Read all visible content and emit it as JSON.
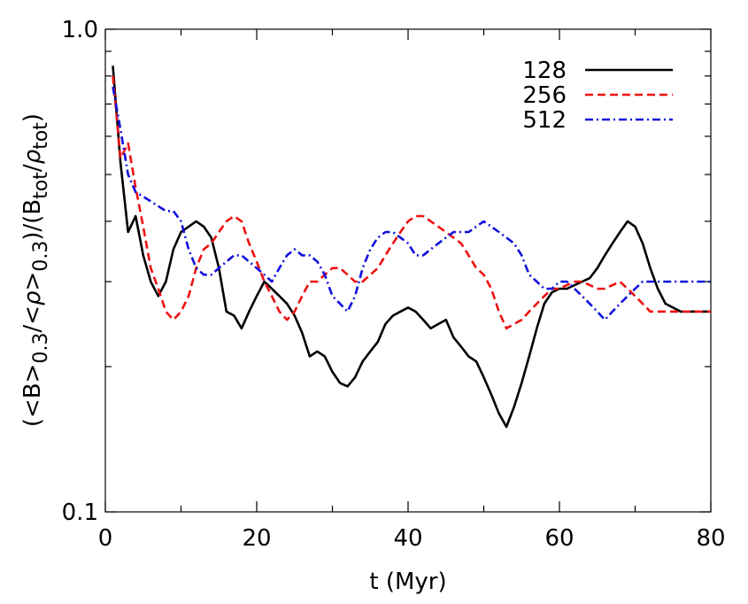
{
  "chart_data": {
    "type": "line",
    "title": "",
    "xlabel": "t (Myr)",
    "ylabel_parts": {
      "open": "(<B>",
      "sub1": "0.3",
      "mid": "/<",
      "rho1": "ρ",
      "mid2": ">",
      "sub2": "0.3",
      "mid3": ")/(B",
      "sub3": "tot",
      "slash": "/",
      "rho2": "ρ",
      "sub4": "tot",
      "close": ")"
    },
    "xlim": [
      0,
      80
    ],
    "ylim": [
      0.1,
      1.0
    ],
    "yscale": "log",
    "xticks": [
      0,
      20,
      40,
      60,
      80
    ],
    "xtick_labels": [
      "0",
      "20",
      "40",
      "60",
      "80"
    ],
    "yticks_labeled": [
      0.1,
      1.0
    ],
    "ytick_labels": [
      "0.1",
      "1.0"
    ],
    "yticks_minor": [
      0.2,
      0.3,
      0.4,
      0.5,
      0.6,
      0.7,
      0.8,
      0.9
    ],
    "xticks_minor": [
      10,
      30,
      50,
      70
    ],
    "legend_position": "top-right",
    "series": [
      {
        "name": "128",
        "color": "#000000",
        "dash": "solid",
        "x": [
          1,
          2,
          3,
          4,
          5,
          6,
          7,
          8,
          9,
          10,
          11,
          12,
          13,
          14,
          15,
          16,
          17,
          18,
          19,
          20,
          21,
          22,
          23,
          24,
          25,
          26,
          27,
          28,
          29,
          30,
          31,
          32,
          33,
          34,
          35,
          36,
          37,
          38,
          39,
          40,
          41,
          42,
          43,
          44,
          45,
          46,
          47,
          48,
          49,
          50,
          51,
          52,
          53,
          54,
          55,
          56,
          57,
          58,
          59,
          60,
          61,
          62,
          63,
          64,
          65,
          66,
          67,
          68,
          69,
          70,
          71,
          72,
          73,
          74,
          75,
          76,
          77,
          78,
          79,
          80
        ],
        "y": [
          0.84,
          0.53,
          0.38,
          0.41,
          0.34,
          0.3,
          0.28,
          0.3,
          0.35,
          0.38,
          0.39,
          0.4,
          0.39,
          0.37,
          0.32,
          0.26,
          0.255,
          0.24,
          0.26,
          0.28,
          0.3,
          0.29,
          0.28,
          0.27,
          0.255,
          0.235,
          0.21,
          0.215,
          0.21,
          0.195,
          0.185,
          0.182,
          0.19,
          0.205,
          0.215,
          0.225,
          0.245,
          0.255,
          0.26,
          0.265,
          0.26,
          0.25,
          0.24,
          0.245,
          0.25,
          0.23,
          0.22,
          0.21,
          0.205,
          0.19,
          0.175,
          0.16,
          0.15,
          0.165,
          0.185,
          0.21,
          0.24,
          0.27,
          0.285,
          0.29,
          0.29,
          0.295,
          0.3,
          0.305,
          0.32,
          0.34,
          0.36,
          0.38,
          0.4,
          0.39,
          0.36,
          0.32,
          0.29,
          0.27,
          0.265,
          0.26,
          0.26,
          0.26,
          0.26,
          0.26
        ]
      },
      {
        "name": "256",
        "color": "#ee1111",
        "dash": "dashed",
        "x": [
          1,
          2,
          3,
          4,
          5,
          6,
          7,
          8,
          9,
          10,
          11,
          12,
          13,
          14,
          15,
          16,
          17,
          18,
          19,
          20,
          21,
          22,
          23,
          24,
          25,
          26,
          27,
          28,
          29,
          30,
          31,
          32,
          33,
          34,
          35,
          36,
          37,
          38,
          39,
          40,
          41,
          42,
          43,
          44,
          45,
          46,
          47,
          48,
          49,
          50,
          51,
          52,
          53,
          54,
          55,
          56,
          57,
          58,
          59,
          60,
          61,
          62,
          63,
          64,
          65,
          66,
          67,
          68,
          69,
          70,
          71,
          72,
          73,
          74,
          75,
          76,
          77,
          78,
          79,
          80
        ],
        "y": [
          0.8,
          0.54,
          0.58,
          0.47,
          0.39,
          0.32,
          0.29,
          0.26,
          0.25,
          0.26,
          0.28,
          0.32,
          0.35,
          0.36,
          0.38,
          0.4,
          0.41,
          0.4,
          0.36,
          0.33,
          0.3,
          0.28,
          0.26,
          0.25,
          0.26,
          0.28,
          0.3,
          0.3,
          0.31,
          0.32,
          0.32,
          0.31,
          0.3,
          0.3,
          0.31,
          0.32,
          0.34,
          0.36,
          0.38,
          0.4,
          0.41,
          0.41,
          0.4,
          0.39,
          0.38,
          0.37,
          0.36,
          0.34,
          0.32,
          0.31,
          0.29,
          0.26,
          0.24,
          0.245,
          0.25,
          0.26,
          0.27,
          0.28,
          0.29,
          0.29,
          0.295,
          0.3,
          0.3,
          0.295,
          0.29,
          0.29,
          0.295,
          0.3,
          0.29,
          0.28,
          0.27,
          0.26,
          0.26,
          0.26,
          0.26,
          0.26,
          0.26,
          0.26,
          0.26,
          0.26
        ]
      },
      {
        "name": "512",
        "color": "#1111dd",
        "dash": "dashdot",
        "x": [
          1,
          2,
          3,
          4,
          5,
          6,
          7,
          8,
          9,
          10,
          11,
          12,
          13,
          14,
          15,
          16,
          17,
          18,
          19,
          20,
          21,
          22,
          23,
          24,
          25,
          26,
          27,
          28,
          29,
          30,
          31,
          32,
          33,
          34,
          35,
          36,
          37,
          38,
          39,
          40,
          41,
          42,
          43,
          44,
          45,
          46,
          47,
          48,
          49,
          50,
          51,
          52,
          53,
          54,
          55,
          56,
          57,
          58,
          59,
          60,
          61,
          62,
          63,
          64,
          65,
          66,
          67,
          68,
          69,
          70,
          71,
          72,
          73,
          74,
          75,
          76,
          77,
          78,
          79,
          80
        ],
        "y": [
          0.76,
          0.62,
          0.5,
          0.46,
          0.45,
          0.44,
          0.43,
          0.42,
          0.42,
          0.4,
          0.35,
          0.32,
          0.31,
          0.31,
          0.32,
          0.33,
          0.34,
          0.34,
          0.33,
          0.32,
          0.31,
          0.3,
          0.32,
          0.34,
          0.35,
          0.34,
          0.34,
          0.33,
          0.31,
          0.28,
          0.27,
          0.26,
          0.28,
          0.32,
          0.35,
          0.37,
          0.38,
          0.38,
          0.37,
          0.36,
          0.34,
          0.34,
          0.35,
          0.36,
          0.37,
          0.38,
          0.38,
          0.38,
          0.39,
          0.4,
          0.39,
          0.38,
          0.37,
          0.36,
          0.34,
          0.31,
          0.3,
          0.29,
          0.29,
          0.3,
          0.3,
          0.29,
          0.28,
          0.27,
          0.26,
          0.25,
          0.26,
          0.27,
          0.28,
          0.29,
          0.3,
          0.3,
          0.3,
          0.3,
          0.3,
          0.3,
          0.3,
          0.3,
          0.3,
          0.3
        ]
      }
    ]
  }
}
